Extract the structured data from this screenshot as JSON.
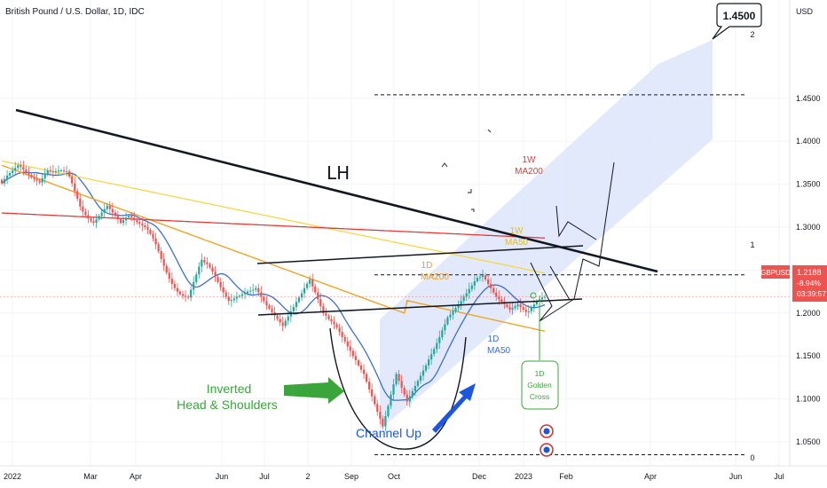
{
  "header": {
    "title": "British Pound / U.S. Dollar, 1D, IDC"
  },
  "axis": {
    "currency": "USD"
  },
  "price_tag": {
    "symbol": "GBPUSD",
    "price": "1.2188",
    "change": "-8.94%",
    "countdown": "03:39:57"
  },
  "target_callout": "1.4500",
  "fib_labels": [
    "2",
    "1",
    "0"
  ],
  "annotations": {
    "lh": "LH",
    "ma200_1w": [
      "1W",
      "MA200"
    ],
    "ma50_1w": [
      "1W",
      "MA50"
    ],
    "ma200_1d": [
      "1D",
      "MA200"
    ],
    "ma50_1d": [
      "1D",
      "MA50"
    ],
    "inverted_hs": [
      "Inverted",
      "Head & Shoulders"
    ],
    "channel_up": "Channel Up",
    "golden_cross": [
      "1D",
      "Golden",
      "Cross"
    ]
  },
  "colors": {
    "bull": "#26a69a",
    "bear": "#ef5350",
    "ma200_1w": "#e53935",
    "ma50_1w": "#f5d742",
    "ma200_1d": "#f59d12",
    "ma50_1d": "#3d6fd1",
    "channel": "#dfe7fb",
    "green_label": "#3aa53a",
    "blue_label": "#1c56e0"
  },
  "chart_data": {
    "type": "candlestick",
    "symbol": "GBPUSD",
    "timeframe": "1D",
    "title": "British Pound / U.S. Dollar, 1D, IDC",
    "x_ticks": [
      "2022",
      "Mar",
      "Apr",
      "Jun",
      "Jul",
      "2",
      "Sep",
      "Oct",
      "Dec",
      "2023",
      "Feb",
      "Apr",
      "Jun",
      "Jul"
    ],
    "y_ticks": [
      1.05,
      1.1,
      1.15,
      1.2,
      1.25,
      1.3,
      1.35,
      1.4,
      1.45
    ],
    "ylim": [
      1.03,
      1.5
    ],
    "last_price": 1.2188,
    "fib_levels": [
      {
        "label": "0",
        "value": 1.035
      },
      {
        "label": "1",
        "value": 1.2445
      },
      {
        "label": "2",
        "value": 1.454
      }
    ],
    "target": 1.45,
    "closes": [
      1.351,
      1.356,
      1.36,
      1.363,
      1.366,
      1.369,
      1.372,
      1.37,
      1.367,
      1.364,
      1.361,
      1.358,
      1.356,
      1.354,
      1.352,
      1.357,
      1.362,
      1.366,
      1.365,
      1.364,
      1.365,
      1.366,
      1.366,
      1.365,
      1.365,
      1.359,
      1.351,
      1.342,
      1.333,
      1.324,
      1.318,
      1.314,
      1.31,
      1.307,
      1.305,
      1.309,
      1.313,
      1.317,
      1.321,
      1.325,
      1.321,
      1.317,
      1.313,
      1.309,
      1.305,
      1.308,
      1.311,
      1.313,
      1.311,
      1.308,
      1.306,
      1.304,
      1.302,
      1.3,
      1.297,
      1.292,
      1.287,
      1.28,
      1.272,
      1.263,
      1.255,
      1.247,
      1.24,
      1.234,
      1.229,
      1.225,
      1.222,
      1.22,
      1.219,
      1.218,
      1.227,
      1.236,
      1.245,
      1.254,
      1.262,
      1.259,
      1.257,
      1.253,
      1.248,
      1.242,
      1.236,
      1.23,
      1.224,
      1.219,
      1.214,
      1.215,
      1.217,
      1.219,
      1.22,
      1.222,
      1.223,
      1.225,
      1.226,
      1.227,
      1.229,
      1.224,
      1.219,
      1.214,
      1.209,
      1.205,
      1.201,
      1.197,
      1.193,
      1.189,
      1.185,
      1.191,
      1.196,
      1.202,
      1.207,
      1.213,
      1.218,
      1.223,
      1.229,
      1.234,
      1.239,
      1.231,
      1.224,
      1.216,
      1.208,
      1.2,
      1.197,
      1.193,
      1.19,
      1.187,
      1.183,
      1.178,
      1.172,
      1.167,
      1.161,
      1.156,
      1.15,
      1.145,
      1.139,
      1.134,
      1.129,
      1.12,
      1.111,
      1.103,
      1.094,
      1.085,
      1.077,
      1.068,
      1.08,
      1.092,
      1.105,
      1.117,
      1.129,
      1.121,
      1.113,
      1.105,
      1.097,
      1.103,
      1.109,
      1.115,
      1.121,
      1.127,
      1.133,
      1.139,
      1.146,
      1.152,
      1.158,
      1.165,
      1.172,
      1.18,
      1.187,
      1.195,
      1.198,
      1.202,
      1.206,
      1.21,
      1.214,
      1.219,
      1.223,
      1.228,
      1.232,
      1.237,
      1.241,
      1.242,
      1.244,
      1.239,
      1.234,
      1.229,
      1.224,
      1.219,
      1.216,
      1.213,
      1.21,
      1.207,
      1.204,
      1.206,
      1.208,
      1.21,
      1.207,
      1.204,
      1.201,
      1.202,
      1.206,
      1.21,
      1.214,
      1.216,
      1.218,
      1.219
    ]
  }
}
